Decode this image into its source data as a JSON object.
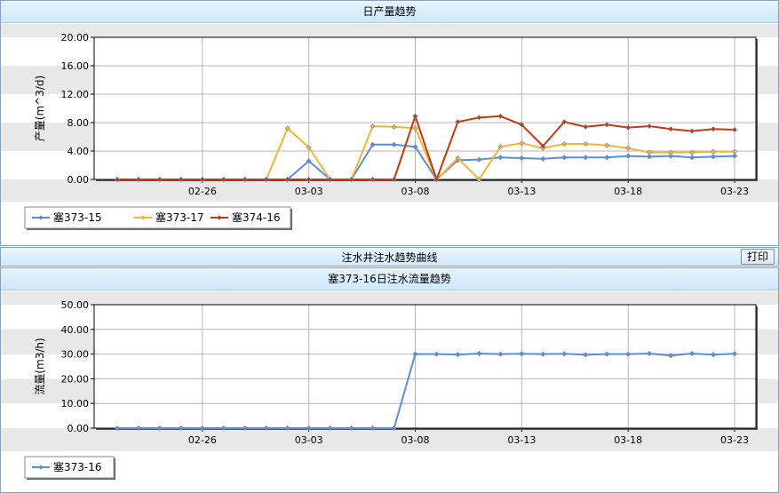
{
  "panel1": {
    "title": "日产量趋势"
  },
  "bar2": {
    "title": "注水井注水趋势曲线",
    "print_label": "打印"
  },
  "panel2": {
    "title": "塞373-16日注水流量趋势"
  },
  "colors": {
    "s1": "#5b8fd1",
    "s2": "#f4b533",
    "s3": "#c2380e",
    "grid": "#b4b4b4",
    "band": "#e8e8e8"
  },
  "chart_data": [
    {
      "type": "line",
      "title": "日产量趋势",
      "ylabel": "产量(m^3/d)",
      "xlabel": "",
      "ylim": [
        0,
        20
      ],
      "yticks": [
        "0.00",
        "4.00",
        "8.00",
        "12.00",
        "16.00",
        "20.00"
      ],
      "x_day_range": [
        0,
        29
      ],
      "xticks": [
        {
          "label": "02-26",
          "day": 4
        },
        {
          "label": "03-03",
          "day": 9
        },
        {
          "label": "03-08",
          "day": 14
        },
        {
          "label": "03-13",
          "day": 19
        },
        {
          "label": "03-18",
          "day": 24
        },
        {
          "label": "03-23",
          "day": 29
        }
      ],
      "legend_position": "bottom-left",
      "series": [
        {
          "name": "塞373-15",
          "color": "#5b8fd1",
          "marker": "diamond",
          "values": [
            0,
            0,
            0,
            0,
            0,
            0,
            0,
            0,
            0,
            2.6,
            0,
            0,
            4.9,
            4.9,
            4.6,
            0,
            2.7,
            2.8,
            3.1,
            3.0,
            2.9,
            3.1,
            3.1,
            3.1,
            3.3,
            3.2,
            3.3,
            3.1,
            3.2,
            3.3
          ]
        },
        {
          "name": "塞373-17",
          "color": "#f4b533",
          "marker": "diamond",
          "values": [
            0,
            0,
            0,
            0,
            0,
            0,
            0,
            0,
            7.2,
            4.5,
            0,
            0,
            7.5,
            7.4,
            7.2,
            0,
            3.0,
            0,
            4.6,
            5.1,
            4.4,
            5.0,
            5.0,
            4.8,
            4.4,
            3.8,
            3.8,
            3.8,
            3.9,
            3.9
          ]
        },
        {
          "name": "塞374-16",
          "color": "#c2380e",
          "marker": "diamond",
          "values": [
            0,
            0,
            0,
            0,
            0,
            0,
            0,
            0,
            0,
            0,
            0,
            0,
            0,
            0,
            8.9,
            0,
            8.1,
            8.7,
            8.9,
            7.7,
            4.7,
            8.1,
            7.4,
            7.7,
            7.3,
            7.5,
            7.1,
            6.8,
            7.1,
            7.0
          ]
        }
      ]
    },
    {
      "type": "line",
      "title": "塞373-16日注水流量趋势",
      "ylabel": "流量(m3/h)",
      "xlabel": "",
      "ylim": [
        0,
        50
      ],
      "yticks": [
        "0.00",
        "10.00",
        "20.00",
        "30.00",
        "40.00",
        "50.00"
      ],
      "x_day_range": [
        0,
        29
      ],
      "xticks": [
        {
          "label": "02-26",
          "day": 4
        },
        {
          "label": "03-03",
          "day": 9
        },
        {
          "label": "03-08",
          "day": 14
        },
        {
          "label": "03-13",
          "day": 19
        },
        {
          "label": "03-18",
          "day": 24
        },
        {
          "label": "03-23",
          "day": 29
        }
      ],
      "legend_position": "bottom-left",
      "series": [
        {
          "name": "塞373-16",
          "color": "#5b8fd1",
          "marker": "diamond",
          "values": [
            0,
            0,
            0,
            0,
            0,
            0,
            0,
            0,
            0,
            0,
            0,
            0,
            0,
            0,
            30.0,
            30.0,
            29.8,
            30.2,
            30.0,
            30.1,
            30.0,
            30.1,
            29.7,
            30.0,
            30.0,
            30.2,
            29.4,
            30.2,
            29.8,
            30.1
          ]
        }
      ]
    }
  ]
}
